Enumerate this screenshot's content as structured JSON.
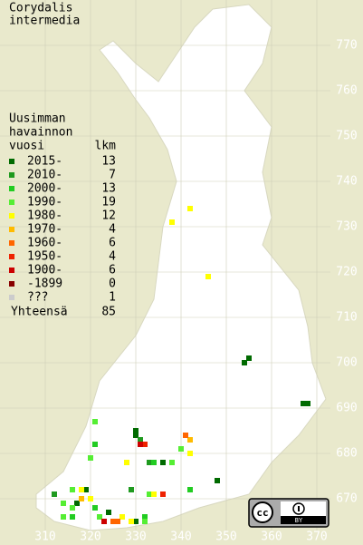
{
  "map": {
    "title": [
      "Corydalis",
      "intermedia"
    ],
    "legend_header": [
      "Uusimman",
      "havainnon",
      "vuosi"
    ],
    "count_header": "lkm",
    "total_label": "Yhteensä",
    "total": 85,
    "license_label": "BY",
    "x_axis": [
      310,
      320,
      330,
      340,
      350,
      360,
      370
    ],
    "y_axis": [
      770,
      760,
      750,
      740,
      730,
      720,
      710,
      700,
      690,
      680,
      670
    ],
    "legend": [
      {
        "label": "2015-",
        "count": 13,
        "color": "#006a00",
        "squares": [
          [
            355,
            701
          ],
          [
            354,
            700
          ],
          [
            367,
            691
          ],
          [
            368,
            691
          ],
          [
            330,
            685
          ],
          [
            330,
            684
          ],
          [
            319,
            672
          ],
          [
            317,
            669
          ],
          [
            324,
            667
          ],
          [
            330,
            665
          ],
          [
            336,
            678
          ],
          [
            348,
            674
          ]
        ]
      },
      {
        "label": "2010-",
        "count": 7,
        "color": "#1f9a1f",
        "squares": [
          [
            333,
            678
          ],
          [
            312,
            671
          ],
          [
            329,
            672
          ],
          [
            331,
            683
          ]
        ]
      },
      {
        "label": "2000-",
        "count": 13,
        "color": "#22cc22",
        "squares": [
          [
            321,
            682
          ],
          [
            316,
            666
          ],
          [
            334,
            678
          ],
          [
            342,
            672
          ],
          [
            321,
            668
          ],
          [
            332,
            666
          ]
        ]
      },
      {
        "label": "1990-",
        "count": 19,
        "color": "#55ee33",
        "squares": [
          [
            321,
            687
          ],
          [
            340,
            681
          ],
          [
            320,
            679
          ],
          [
            316,
            672
          ],
          [
            314,
            669
          ],
          [
            316,
            668
          ],
          [
            314,
            666
          ],
          [
            322,
            666
          ],
          [
            332,
            665
          ],
          [
            338,
            678
          ],
          [
            333,
            671
          ]
        ]
      },
      {
        "label": "1980-",
        "count": 12,
        "color": "#ffff00",
        "squares": [
          [
            342,
            734
          ],
          [
            338,
            731
          ],
          [
            346,
            719
          ],
          [
            342,
            680
          ],
          [
            328,
            678
          ],
          [
            318,
            672
          ],
          [
            320,
            670
          ],
          [
            334,
            671
          ],
          [
            327,
            666
          ],
          [
            329,
            665
          ]
        ]
      },
      {
        "label": "1970-",
        "count": 4,
        "color": "#ffbb00",
        "squares": [
          [
            342,
            683
          ],
          [
            318,
            670
          ]
        ]
      },
      {
        "label": "1960-",
        "count": 6,
        "color": "#ff6600",
        "squares": [
          [
            341,
            684
          ],
          [
            325,
            665
          ],
          [
            326,
            665
          ]
        ]
      },
      {
        "label": "1950-",
        "count": 4,
        "color": "#ee2200",
        "squares": [
          [
            332,
            682
          ],
          [
            336,
            671
          ]
        ]
      },
      {
        "label": "1900-",
        "count": 6,
        "color": "#cc0000",
        "squares": [
          [
            331,
            682
          ],
          [
            323,
            665
          ]
        ]
      },
      {
        "label": "-1899",
        "count": 0,
        "color": "#880000",
        "squares": []
      },
      {
        "label": "???",
        "count": 1,
        "color": "#cccccc",
        "squares": []
      }
    ]
  }
}
